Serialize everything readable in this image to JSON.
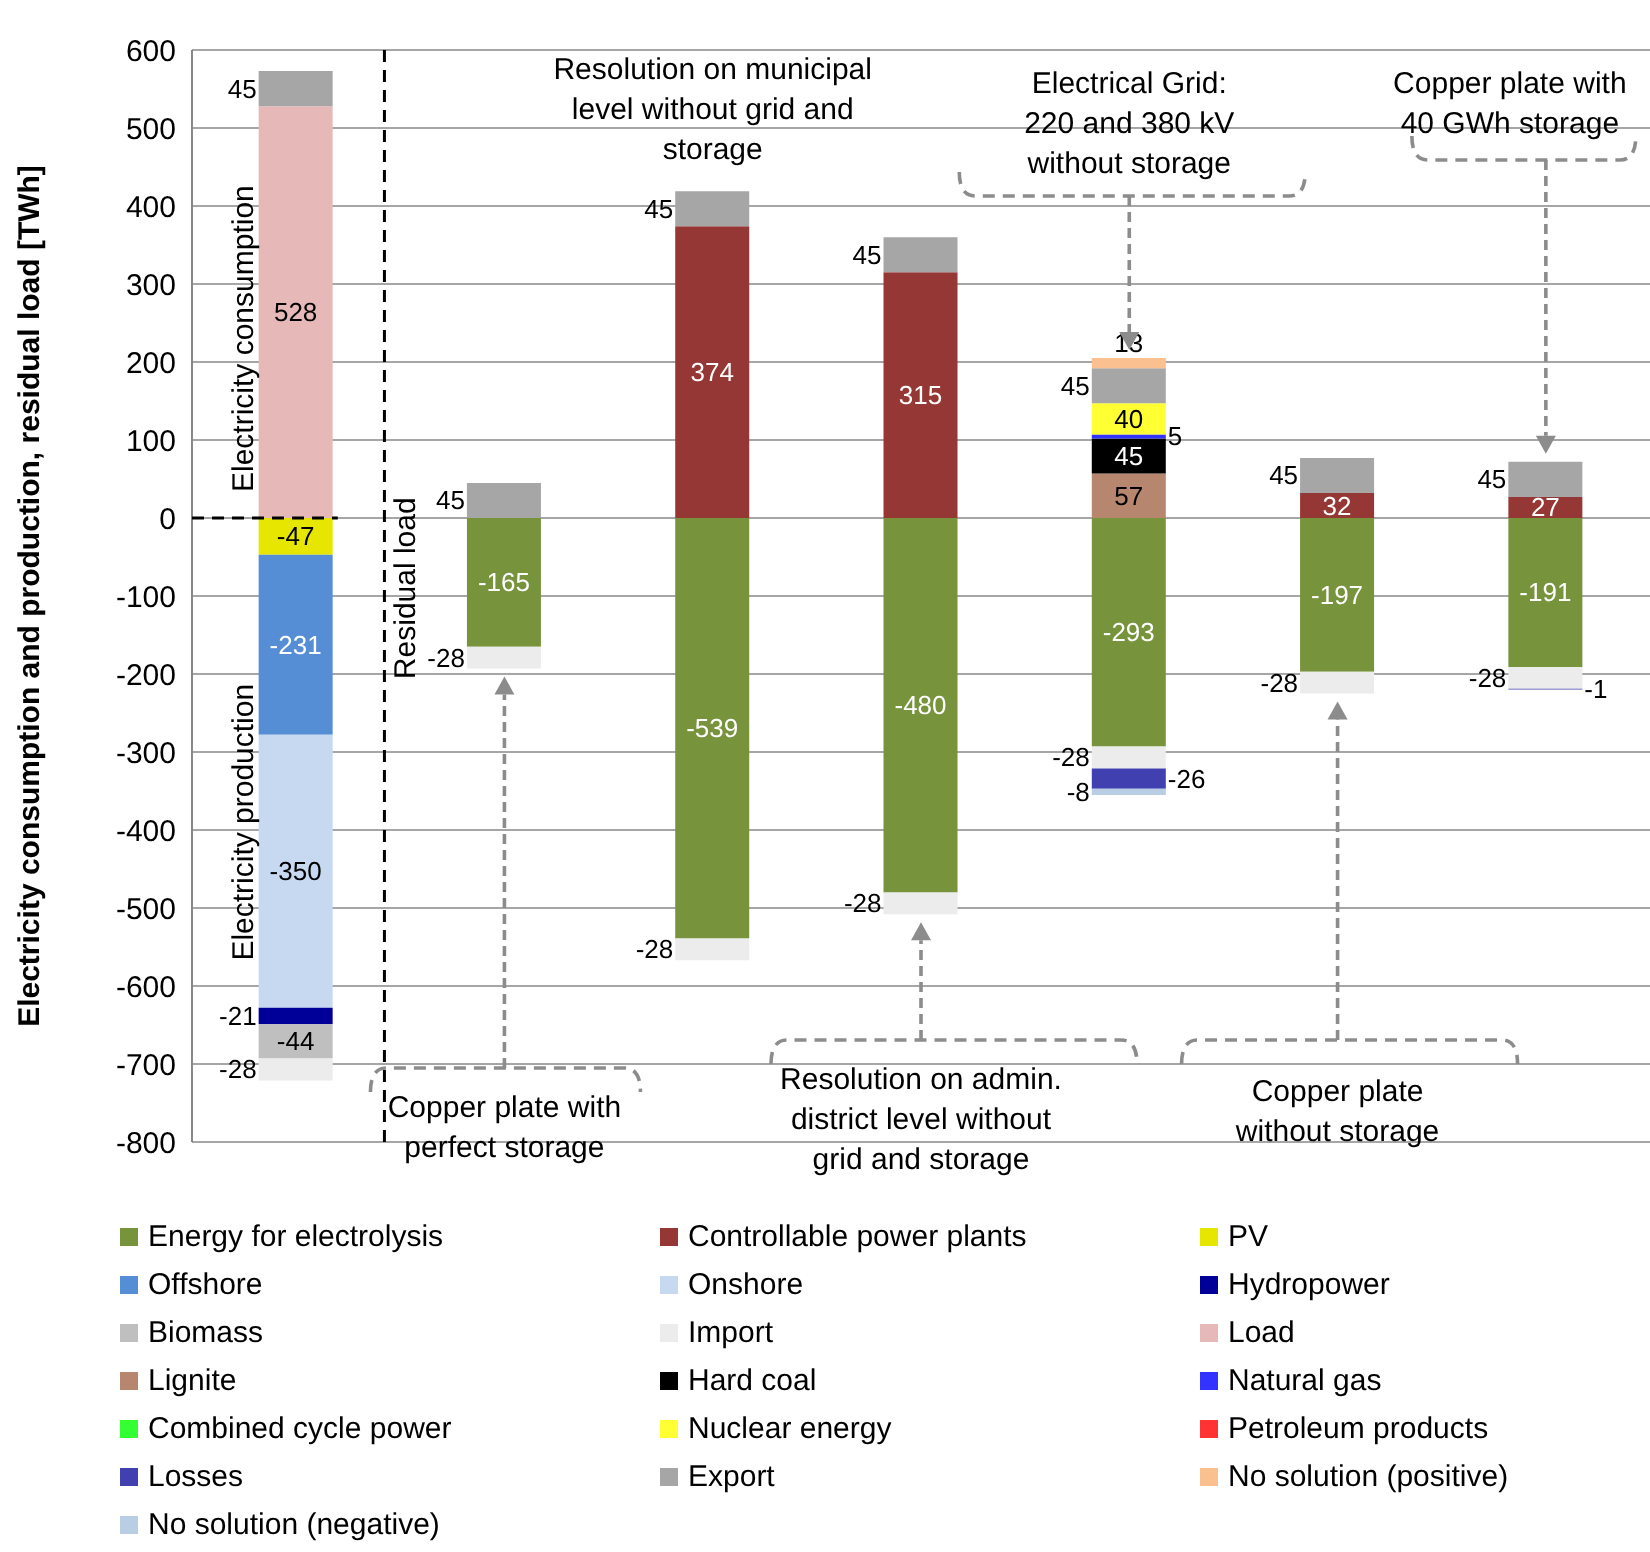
{
  "chart_data": {
    "type": "bar",
    "stacked": true,
    "ylabel": "Electricity consumption and production, residual load [TWh]",
    "categories": [
      null,
      null,
      null,
      null,
      null,
      null,
      null
    ],
    "series": [
      {
        "name": "Energy for electrolysis",
        "color": "#77933c",
        "values": [
          null,
          -165,
          -539,
          -480,
          -293,
          -197,
          -191
        ]
      },
      {
        "name": "Controllable power plants",
        "color": "#953735",
        "values": [
          null,
          null,
          374,
          315,
          null,
          32,
          27
        ]
      },
      {
        "name": "PV",
        "color": "#e6e600",
        "values": [
          -47,
          null,
          null,
          null,
          null,
          null,
          null
        ]
      },
      {
        "name": "Offshore",
        "color": "#558ed5",
        "values": [
          -231,
          null,
          null,
          null,
          null,
          null,
          null
        ]
      },
      {
        "name": "Onshore",
        "color": "#c6d9f1",
        "values": [
          -350,
          null,
          null,
          null,
          null,
          null,
          null
        ]
      },
      {
        "name": "Hydropower",
        "color": "#000099",
        "values": [
          -21,
          null,
          null,
          null,
          null,
          null,
          null
        ]
      },
      {
        "name": "Biomass",
        "color": "#bfbfbf",
        "values": [
          -44,
          null,
          null,
          null,
          null,
          null,
          null
        ]
      },
      {
        "name": "Import",
        "color": "#ececec",
        "values": [
          -28,
          -28,
          -28,
          -28,
          -28,
          -28,
          -28
        ]
      },
      {
        "name": "Load",
        "color": "#e6b9b8",
        "values": [
          528,
          null,
          null,
          null,
          null,
          null,
          null
        ]
      },
      {
        "name": "Lignite",
        "color": "#b7866e",
        "values": [
          null,
          null,
          null,
          null,
          57,
          null,
          null
        ]
      },
      {
        "name": "Hard coal",
        "color": "#000000",
        "values": [
          null,
          null,
          null,
          null,
          45,
          null,
          null
        ]
      },
      {
        "name": "Natural gas",
        "color": "#3333ff",
        "values": [
          null,
          null,
          null,
          null,
          5,
          null,
          null
        ]
      },
      {
        "name": "Combined cycle power",
        "color": "#33ff33",
        "values": [
          null,
          null,
          null,
          null,
          null,
          null,
          null
        ]
      },
      {
        "name": "Nuclear energy",
        "color": "#ffff33",
        "values": [
          null,
          null,
          null,
          null,
          40,
          null,
          null
        ]
      },
      {
        "name": "Petroleum products",
        "color": "#ff3333",
        "values": [
          null,
          null,
          null,
          null,
          null,
          null,
          null
        ]
      },
      {
        "name": "Losses",
        "color": "#4040b0",
        "values": [
          null,
          null,
          null,
          null,
          -26,
          null,
          -1
        ]
      },
      {
        "name": "Export",
        "color": "#a6a6a6",
        "values": [
          45,
          45,
          45,
          45,
          45,
          45,
          45
        ]
      },
      {
        "name": "No solution (positive)",
        "color": "#fac090",
        "values": [
          null,
          null,
          null,
          null,
          13,
          null,
          null
        ]
      },
      {
        "name": "No solution (negative)",
        "color": "#b9cde5",
        "values": [
          null,
          null,
          null,
          null,
          -8,
          null,
          null
        ]
      }
    ],
    "ylim": [
      -800,
      600
    ],
    "yticks": [
      -800,
      -700,
      -600,
      -500,
      -400,
      -300,
      -200,
      -100,
      0,
      100,
      200,
      300,
      400,
      500,
      600
    ],
    "grid": "y",
    "legend": "bottom",
    "tick_labels": "y",
    "data_labels": true,
    "annotations": [
      "Electricity consumption",
      "Electricity production",
      "Residual load",
      "Resolution on municipal level without grid and storage",
      "Electrical Grid: 220 and 380 kV without storage",
      "Copper plate with 40 GWh storage",
      "Copper plate with perfect storage",
      "Resolution on admin. district level without grid and storage",
      "Copper plate without storage"
    ]
  }
}
